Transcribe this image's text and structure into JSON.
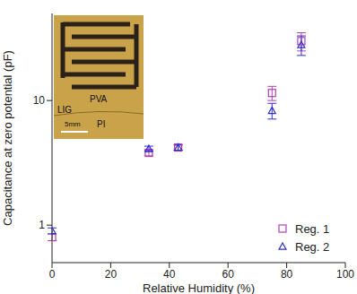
{
  "chart_data": {
    "type": "scatter",
    "x_label": "Relative Humidity (%)",
    "y_label": "Capacitance at zero potential (pF)",
    "xlim": [
      0,
      100
    ],
    "xticks": [
      0,
      20,
      40,
      60,
      80,
      100
    ],
    "ylim": [
      0.5,
      50
    ],
    "yticks": [
      1,
      10
    ],
    "log": "y",
    "legend": "bottom right",
    "series": [
      {
        "name": "Reg. 1",
        "color": "#b040b0",
        "marker": "square",
        "x": [
          0,
          33,
          43,
          75,
          85
        ],
        "values": [
          0.8,
          3.8,
          4.2,
          11.5,
          30
        ],
        "errors": [
          0.05,
          0.2,
          0.2,
          1.5,
          5
        ]
      },
      {
        "name": "Reg. 2",
        "color": "#3030d0",
        "marker": "triangle",
        "x": [
          0,
          33,
          43,
          75,
          85
        ],
        "values": [
          0.9,
          4.1,
          4.2,
          8.3,
          28
        ],
        "errors": [
          0.05,
          0.2,
          0.2,
          1.2,
          5
        ]
      }
    ]
  },
  "inset": {
    "labels": [
      "PVA",
      "LIG",
      "PI",
      "5mm"
    ]
  }
}
